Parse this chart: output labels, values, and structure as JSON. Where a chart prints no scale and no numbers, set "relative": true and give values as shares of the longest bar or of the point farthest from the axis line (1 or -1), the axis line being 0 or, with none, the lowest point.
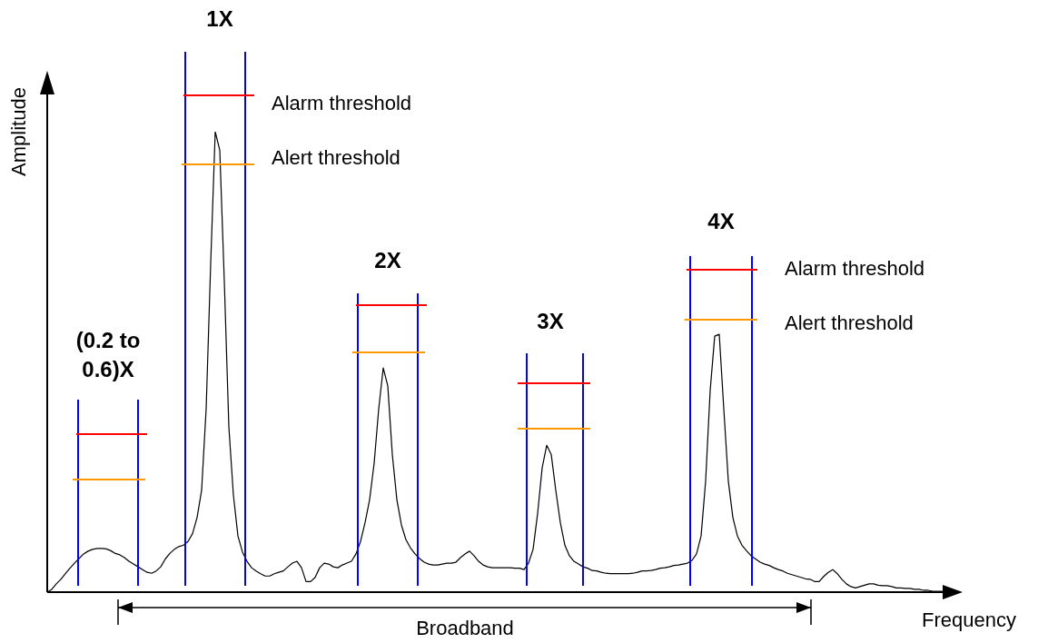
{
  "chart_data": {
    "type": "line",
    "relative": true,
    "xlabel": "Frequency",
    "ylabel": "Amplitude",
    "tick_labels": false,
    "marker": "none",
    "categories": [
      null,
      null,
      null,
      null,
      null,
      null,
      null,
      null,
      null,
      null,
      null,
      null,
      null,
      null,
      null,
      null,
      null,
      null,
      null,
      null,
      null,
      null,
      null,
      null,
      null,
      null,
      null,
      null,
      null,
      null,
      null,
      null,
      null,
      null,
      null,
      null,
      null,
      null,
      null,
      null,
      null,
      null,
      null,
      null,
      null,
      null,
      null,
      null,
      null,
      null,
      null,
      null,
      null,
      null,
      null,
      null,
      null,
      null,
      null,
      null,
      null,
      null,
      null,
      null,
      null,
      null,
      null,
      null,
      null,
      null,
      null,
      null,
      null,
      null,
      null,
      null,
      null,
      null,
      null,
      null,
      null,
      null,
      null,
      null,
      null,
      null,
      null,
      null,
      null,
      null,
      null,
      null,
      null,
      null,
      null,
      null,
      null,
      null,
      null,
      null,
      null,
      null,
      null,
      null,
      null,
      null,
      null,
      null,
      null,
      null,
      null,
      null,
      null,
      null,
      null,
      null,
      null,
      null,
      null,
      null,
      null,
      null,
      null,
      null,
      null,
      null,
      null,
      null,
      null,
      null,
      null,
      null,
      null,
      null,
      null,
      null,
      null,
      null,
      null,
      null,
      null,
      null,
      null,
      null,
      null,
      null,
      null,
      null,
      null,
      null,
      null,
      null,
      null,
      null,
      null,
      null,
      null,
      null,
      null,
      null,
      null,
      null,
      null,
      null,
      null,
      null,
      null,
      null,
      null,
      null,
      null,
      null,
      null,
      null,
      null,
      null,
      null,
      null,
      null,
      null,
      null,
      null,
      null,
      null,
      null,
      null,
      null,
      null,
      null,
      null,
      null,
      null,
      null,
      null,
      null,
      null,
      null,
      null,
      null
    ],
    "series": [
      {
        "color": "#000000",
        "values": [
          0,
          0.006,
          0.018,
          0.028,
          0.04,
          0.052,
          0.063,
          0.073,
          0.083,
          0.089,
          0.093,
          0.095,
          0.095,
          0.094,
          0.09,
          0.084,
          0.081,
          0.075,
          0.067,
          0.061,
          0.055,
          0.049,
          0.043,
          0.041,
          0.046,
          0.055,
          0.072,
          0.084,
          0.093,
          0.099,
          0.102,
          0.11,
          0.127,
          0.162,
          0.221,
          0.398,
          0.714,
          1,
          0.96,
          0.675,
          0.359,
          0.211,
          0.122,
          0.087,
          0.067,
          0.053,
          0.046,
          0.04,
          0.035,
          0.035,
          0.04,
          0.043,
          0.046,
          0.055,
          0.063,
          0.067,
          0.053,
          0.023,
          0.023,
          0.032,
          0.053,
          0.063,
          0.061,
          0.055,
          0.053,
          0.059,
          0.063,
          0.067,
          0.083,
          0.11,
          0.151,
          0.201,
          0.28,
          0.398,
          0.487,
          0.448,
          0.299,
          0.201,
          0.146,
          0.114,
          0.096,
          0.083,
          0.073,
          0.065,
          0.061,
          0.059,
          0.059,
          0.061,
          0.063,
          0.063,
          0.065,
          0.075,
          0.083,
          0.089,
          0.079,
          0.067,
          0.059,
          0.055,
          0.053,
          0.053,
          0.053,
          0.053,
          0.053,
          0.052,
          0.052,
          0.049,
          0.063,
          0.093,
          0.171,
          0.27,
          0.319,
          0.299,
          0.221,
          0.151,
          0.102,
          0.079,
          0.067,
          0.061,
          0.055,
          0.052,
          0.047,
          0.046,
          0.043,
          0.041,
          0.04,
          0.04,
          0.04,
          0.04,
          0.04,
          0.041,
          0.043,
          0.046,
          0.046,
          0.047,
          0.049,
          0.052,
          0.053,
          0.055,
          0.058,
          0.059,
          0.061,
          0.063,
          0.069,
          0.083,
          0.122,
          0.241,
          0.438,
          0.556,
          0.56,
          0.398,
          0.241,
          0.162,
          0.122,
          0.102,
          0.09,
          0.079,
          0.072,
          0.065,
          0.061,
          0.058,
          0.053,
          0.049,
          0.046,
          0.041,
          0.038,
          0.035,
          0.032,
          0.029,
          0.028,
          0.023,
          0.023,
          0.034,
          0.043,
          0.049,
          0.04,
          0.028,
          0.018,
          0.012,
          0.009,
          0.012,
          0.015,
          0.018,
          0.018,
          0.015,
          0.014,
          0.014,
          0.012,
          0.009,
          0.009,
          0.008,
          0.008,
          0.006,
          0.006,
          0.004,
          0.004,
          0.002,
          0.002,
          0.002,
          0
        ]
      }
    ],
    "annotations": [
      "(0.2 to 0.6)X",
      "1X",
      "2X",
      "3X",
      "4X",
      "Alarm threshold",
      "Alert threshold",
      "Alarm threshold",
      "Alert threshold",
      "Broadband"
    ]
  }
}
